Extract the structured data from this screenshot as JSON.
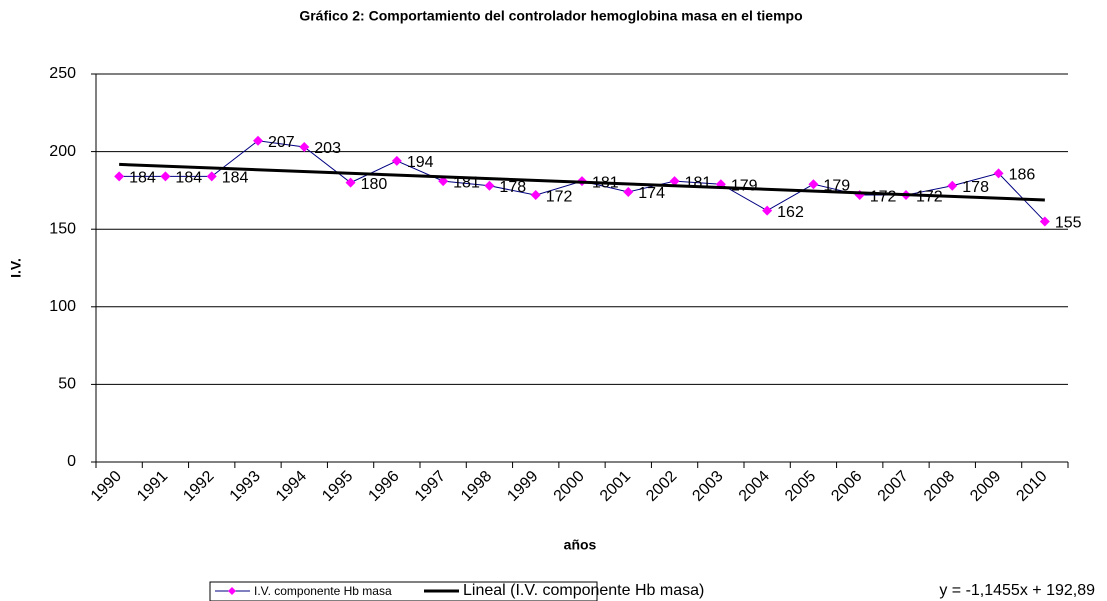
{
  "chart_data": {
    "type": "line",
    "title": "Gráfico 2:  Comportamiento del controlador hemoglobina masa en el tiempo",
    "x_label": "años",
    "y_label": "I.V.",
    "categories": [
      "1990",
      "1991",
      "1992",
      "1993",
      "1994",
      "1995",
      "1996",
      "1997",
      "1998",
      "1999",
      "2000",
      "2001",
      "2002",
      "2003",
      "2004",
      "2005",
      "2006",
      "2007",
      "2008",
      "2009",
      "2010"
    ],
    "series": [
      {
        "name": "I.V. componente Hb masa",
        "color": "#000080",
        "marker_color": "#ff00ff",
        "values": [
          184,
          184,
          184,
          207,
          203,
          180,
          194,
          181,
          178,
          172,
          181,
          174,
          181,
          179,
          162,
          179,
          172,
          172,
          178,
          186,
          155
        ]
      }
    ],
    "trendline": {
      "name": "Lineal (I.V. componente Hb masa)",
      "color": "#000000",
      "slope": -1.1455,
      "intercept": 192.89,
      "label": "y = -1,1455x + 192,89"
    },
    "ylim": [
      0,
      250
    ],
    "yticks": [
      0,
      50,
      100,
      150,
      200,
      250
    ],
    "grid": true
  }
}
